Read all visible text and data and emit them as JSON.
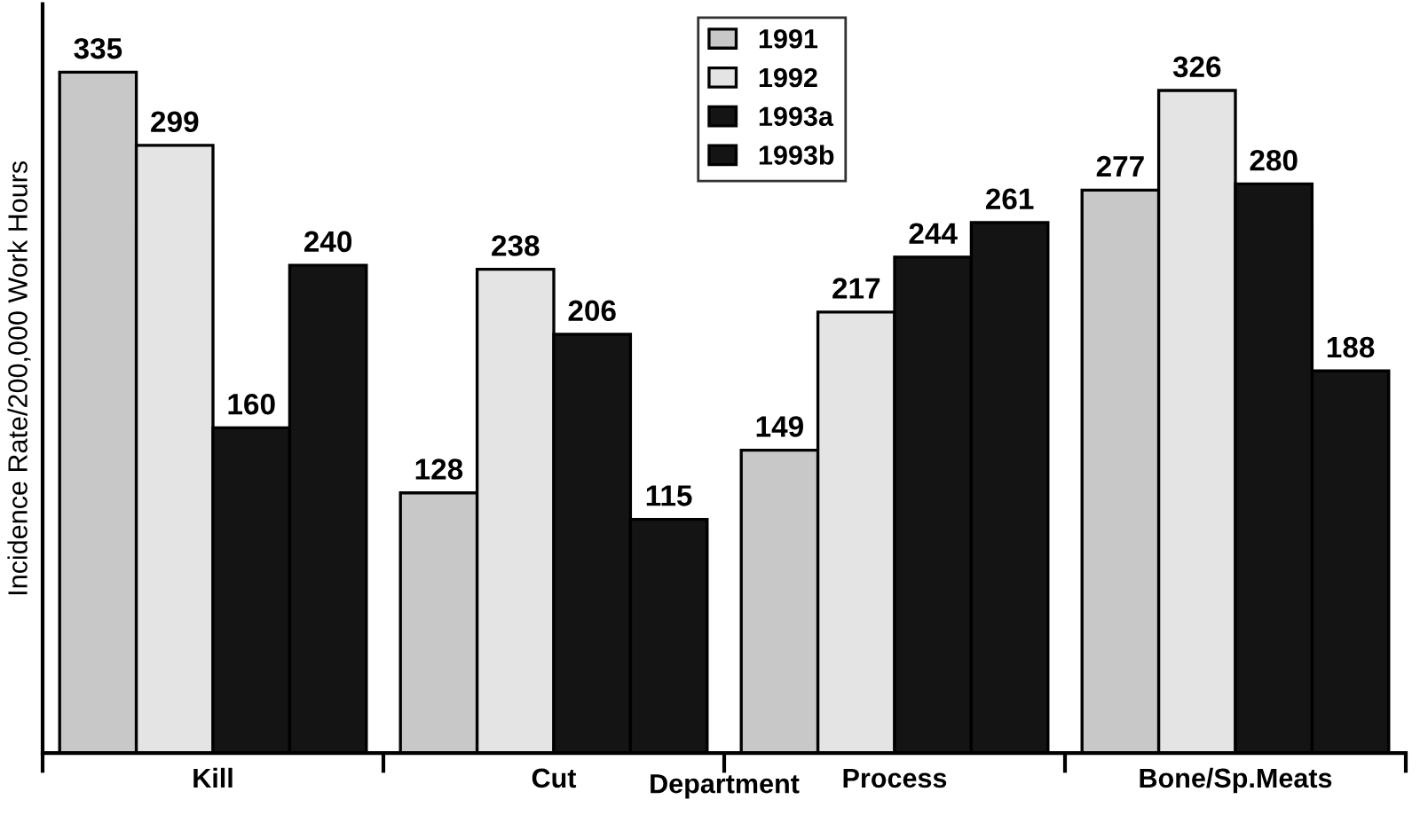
{
  "chart_data": {
    "type": "bar",
    "xlabel": "Department",
    "ylabel": "Incidence Rate/200,000 Work Hours",
    "categories": [
      "Kill",
      "Cut",
      "Process",
      "Bone/Sp.Meats"
    ],
    "series": [
      {
        "name": "1991",
        "color": "#c8c8c8",
        "values": [
          335,
          128,
          149,
          277
        ]
      },
      {
        "name": "1992",
        "color": "#e4e4e4",
        "values": [
          299,
          238,
          217,
          326
        ]
      },
      {
        "name": "1993a",
        "color": "#141414",
        "values": [
          160,
          206,
          244,
          280
        ]
      },
      {
        "name": "1993b",
        "color": "#141414",
        "values": [
          240,
          115,
          261,
          188
        ]
      }
    ],
    "data_labels": true,
    "legend": "top",
    "grid": false,
    "tick_labels": "x"
  }
}
